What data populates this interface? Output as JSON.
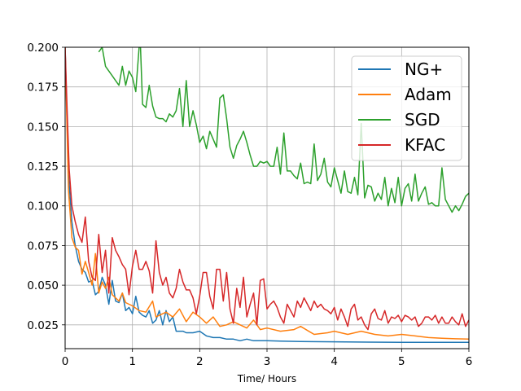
{
  "chart_data": {
    "type": "line",
    "title": "",
    "xlabel": "Time/ Hours",
    "ylabel": "",
    "xlim": [
      0,
      6
    ],
    "ylim": [
      0.01,
      0.2
    ],
    "xticks": [
      "0",
      "1",
      "2",
      "3",
      "4",
      "5",
      "6"
    ],
    "yticks": [
      "0.025",
      "0.050",
      "0.075",
      "0.100",
      "0.125",
      "0.150",
      "0.175",
      "0.200"
    ],
    "grid": true,
    "legend_position": "top-right",
    "series": [
      {
        "name": "NG+",
        "color": "#1f77b4",
        "x": [
          0,
          0.05,
          0.1,
          0.15,
          0.2,
          0.25,
          0.3,
          0.35,
          0.4,
          0.45,
          0.5,
          0.55,
          0.6,
          0.65,
          0.7,
          0.75,
          0.8,
          0.85,
          0.9,
          0.95,
          1.0,
          1.05,
          1.1,
          1.15,
          1.2,
          1.25,
          1.3,
          1.35,
          1.4,
          1.45,
          1.5,
          1.55,
          1.6,
          1.65,
          1.7,
          1.75,
          1.8,
          1.9,
          2.0,
          2.1,
          2.2,
          2.3,
          2.4,
          2.5,
          2.6,
          2.7,
          2.8,
          3.0,
          3.2,
          3.5,
          4.0,
          4.5,
          5.0,
          5.5,
          6.0
        ],
        "values": [
          0.2,
          0.12,
          0.09,
          0.075,
          0.065,
          0.06,
          0.058,
          0.052,
          0.053,
          0.044,
          0.046,
          0.055,
          0.05,
          0.038,
          0.053,
          0.04,
          0.039,
          0.045,
          0.034,
          0.036,
          0.032,
          0.043,
          0.033,
          0.031,
          0.03,
          0.034,
          0.026,
          0.028,
          0.034,
          0.025,
          0.034,
          0.027,
          0.03,
          0.021,
          0.021,
          0.021,
          0.02,
          0.02,
          0.021,
          0.018,
          0.017,
          0.017,
          0.016,
          0.016,
          0.015,
          0.016,
          0.015,
          0.015,
          0.0148,
          0.0145,
          0.0143,
          0.0141,
          0.014,
          0.014,
          0.014
        ]
      },
      {
        "name": "Adam",
        "color": "#ff7f0e",
        "x": [
          0,
          0.05,
          0.1,
          0.15,
          0.2,
          0.25,
          0.3,
          0.35,
          0.4,
          0.45,
          0.5,
          0.55,
          0.6,
          0.65,
          0.7,
          0.75,
          0.8,
          0.85,
          0.9,
          0.95,
          1.0,
          1.1,
          1.2,
          1.3,
          1.35,
          1.4,
          1.5,
          1.6,
          1.7,
          1.8,
          1.9,
          2.0,
          2.1,
          2.2,
          2.3,
          2.4,
          2.5,
          2.6,
          2.7,
          2.8,
          2.9,
          3.0,
          3.2,
          3.4,
          3.5,
          3.7,
          3.9,
          4.0,
          4.2,
          4.4,
          4.6,
          4.8,
          5.0,
          5.2,
          5.4,
          5.6,
          5.8,
          6.0
        ],
        "values": [
          0.2,
          0.11,
          0.08,
          0.074,
          0.072,
          0.057,
          0.065,
          0.058,
          0.05,
          0.07,
          0.045,
          0.052,
          0.048,
          0.055,
          0.044,
          0.042,
          0.04,
          0.045,
          0.039,
          0.038,
          0.037,
          0.034,
          0.033,
          0.04,
          0.03,
          0.031,
          0.033,
          0.03,
          0.035,
          0.027,
          0.033,
          0.03,
          0.026,
          0.03,
          0.024,
          0.025,
          0.027,
          0.025,
          0.023,
          0.028,
          0.022,
          0.023,
          0.021,
          0.022,
          0.024,
          0.019,
          0.02,
          0.021,
          0.019,
          0.021,
          0.019,
          0.018,
          0.019,
          0.018,
          0.017,
          0.0165,
          0.0162,
          0.016
        ]
      },
      {
        "name": "SGD",
        "color": "#2ca02c",
        "x": [
          0.5,
          0.55,
          0.6,
          0.65,
          0.7,
          0.75,
          0.8,
          0.85,
          0.9,
          0.95,
          1.0,
          1.05,
          1.1,
          1.12,
          1.15,
          1.2,
          1.25,
          1.3,
          1.35,
          1.4,
          1.45,
          1.5,
          1.55,
          1.6,
          1.65,
          1.7,
          1.75,
          1.8,
          1.85,
          1.9,
          1.95,
          2.0,
          2.05,
          2.1,
          2.15,
          2.2,
          2.25,
          2.3,
          2.35,
          2.4,
          2.45,
          2.5,
          2.55,
          2.6,
          2.65,
          2.7,
          2.75,
          2.8,
          2.85,
          2.9,
          2.95,
          3.0,
          3.05,
          3.1,
          3.15,
          3.2,
          3.25,
          3.3,
          3.35,
          3.4,
          3.45,
          3.5,
          3.55,
          3.6,
          3.65,
          3.7,
          3.75,
          3.8,
          3.85,
          3.9,
          3.95,
          4.0,
          4.05,
          4.1,
          4.15,
          4.2,
          4.25,
          4.3,
          4.35,
          4.4,
          4.45,
          4.5,
          4.55,
          4.6,
          4.65,
          4.7,
          4.75,
          4.8,
          4.85,
          4.9,
          4.95,
          5.0,
          5.05,
          5.1,
          5.15,
          5.2,
          5.25,
          5.3,
          5.35,
          5.4,
          5.45,
          5.5,
          5.55,
          5.6,
          5.65,
          5.7,
          5.75,
          5.8,
          5.85,
          5.9,
          5.95,
          6.0
        ],
        "values": [
          0.197,
          0.2,
          0.188,
          0.185,
          0.182,
          0.179,
          0.176,
          0.188,
          0.176,
          0.185,
          0.181,
          0.172,
          0.2,
          0.2,
          0.164,
          0.162,
          0.176,
          0.163,
          0.156,
          0.155,
          0.155,
          0.153,
          0.158,
          0.156,
          0.16,
          0.174,
          0.15,
          0.179,
          0.15,
          0.16,
          0.151,
          0.14,
          0.144,
          0.136,
          0.147,
          0.142,
          0.137,
          0.168,
          0.17,
          0.155,
          0.137,
          0.13,
          0.138,
          0.142,
          0.147,
          0.14,
          0.132,
          0.125,
          0.125,
          0.128,
          0.127,
          0.128,
          0.125,
          0.125,
          0.137,
          0.12,
          0.146,
          0.122,
          0.122,
          0.119,
          0.117,
          0.127,
          0.114,
          0.115,
          0.114,
          0.139,
          0.116,
          0.12,
          0.13,
          0.115,
          0.112,
          0.124,
          0.116,
          0.108,
          0.122,
          0.109,
          0.108,
          0.118,
          0.107,
          0.152,
          0.105,
          0.113,
          0.112,
          0.103,
          0.108,
          0.104,
          0.118,
          0.1,
          0.111,
          0.102,
          0.118,
          0.1,
          0.111,
          0.114,
          0.103,
          0.12,
          0.103,
          0.108,
          0.112,
          0.101,
          0.102,
          0.1,
          0.1,
          0.124,
          0.104,
          0.1,
          0.096,
          0.1,
          0.097,
          0.101,
          0.106,
          0.108
        ]
      },
      {
        "name": "KFAC",
        "color": "#d62728",
        "x": [
          0,
          0.03,
          0.06,
          0.1,
          0.15,
          0.2,
          0.25,
          0.3,
          0.35,
          0.4,
          0.45,
          0.5,
          0.55,
          0.6,
          0.65,
          0.7,
          0.75,
          0.8,
          0.85,
          0.9,
          0.95,
          1.0,
          1.05,
          1.1,
          1.15,
          1.2,
          1.25,
          1.3,
          1.35,
          1.4,
          1.45,
          1.5,
          1.55,
          1.6,
          1.65,
          1.7,
          1.75,
          1.8,
          1.85,
          1.9,
          1.95,
          2.0,
          2.05,
          2.1,
          2.15,
          2.2,
          2.25,
          2.3,
          2.35,
          2.4,
          2.45,
          2.5,
          2.55,
          2.6,
          2.65,
          2.7,
          2.75,
          2.8,
          2.85,
          2.9,
          2.95,
          3.0,
          3.05,
          3.1,
          3.15,
          3.2,
          3.25,
          3.3,
          3.35,
          3.4,
          3.45,
          3.5,
          3.55,
          3.6,
          3.65,
          3.7,
          3.75,
          3.8,
          3.85,
          3.9,
          3.95,
          4.0,
          4.05,
          4.1,
          4.15,
          4.2,
          4.25,
          4.3,
          4.35,
          4.4,
          4.45,
          4.5,
          4.55,
          4.6,
          4.65,
          4.7,
          4.75,
          4.8,
          4.85,
          4.9,
          4.95,
          5.0,
          5.05,
          5.1,
          5.15,
          5.2,
          5.25,
          5.3,
          5.35,
          5.4,
          5.45,
          5.5,
          5.55,
          5.6,
          5.65,
          5.7,
          5.75,
          5.8,
          5.85,
          5.9,
          5.95,
          6.0
        ],
        "values": [
          0.2,
          0.16,
          0.123,
          0.1,
          0.09,
          0.082,
          0.077,
          0.093,
          0.065,
          0.055,
          0.053,
          0.082,
          0.058,
          0.072,
          0.045,
          0.08,
          0.072,
          0.068,
          0.063,
          0.06,
          0.044,
          0.062,
          0.072,
          0.06,
          0.06,
          0.065,
          0.059,
          0.045,
          0.078,
          0.058,
          0.05,
          0.055,
          0.045,
          0.042,
          0.048,
          0.06,
          0.052,
          0.047,
          0.047,
          0.042,
          0.032,
          0.043,
          0.058,
          0.058,
          0.043,
          0.035,
          0.06,
          0.06,
          0.04,
          0.058,
          0.035,
          0.026,
          0.048,
          0.036,
          0.055,
          0.03,
          0.038,
          0.045,
          0.025,
          0.053,
          0.054,
          0.035,
          0.038,
          0.04,
          0.036,
          0.03,
          0.026,
          0.038,
          0.034,
          0.03,
          0.04,
          0.036,
          0.042,
          0.038,
          0.034,
          0.04,
          0.036,
          0.038,
          0.035,
          0.034,
          0.032,
          0.036,
          0.028,
          0.035,
          0.03,
          0.024,
          0.035,
          0.038,
          0.028,
          0.03,
          0.025,
          0.022,
          0.032,
          0.035,
          0.029,
          0.028,
          0.034,
          0.026,
          0.03,
          0.029,
          0.031,
          0.027,
          0.031,
          0.03,
          0.028,
          0.03,
          0.024,
          0.026,
          0.03,
          0.03,
          0.028,
          0.031,
          0.026,
          0.03,
          0.026,
          0.026,
          0.03,
          0.027,
          0.025,
          0.032,
          0.024,
          0.028
        ]
      }
    ]
  }
}
